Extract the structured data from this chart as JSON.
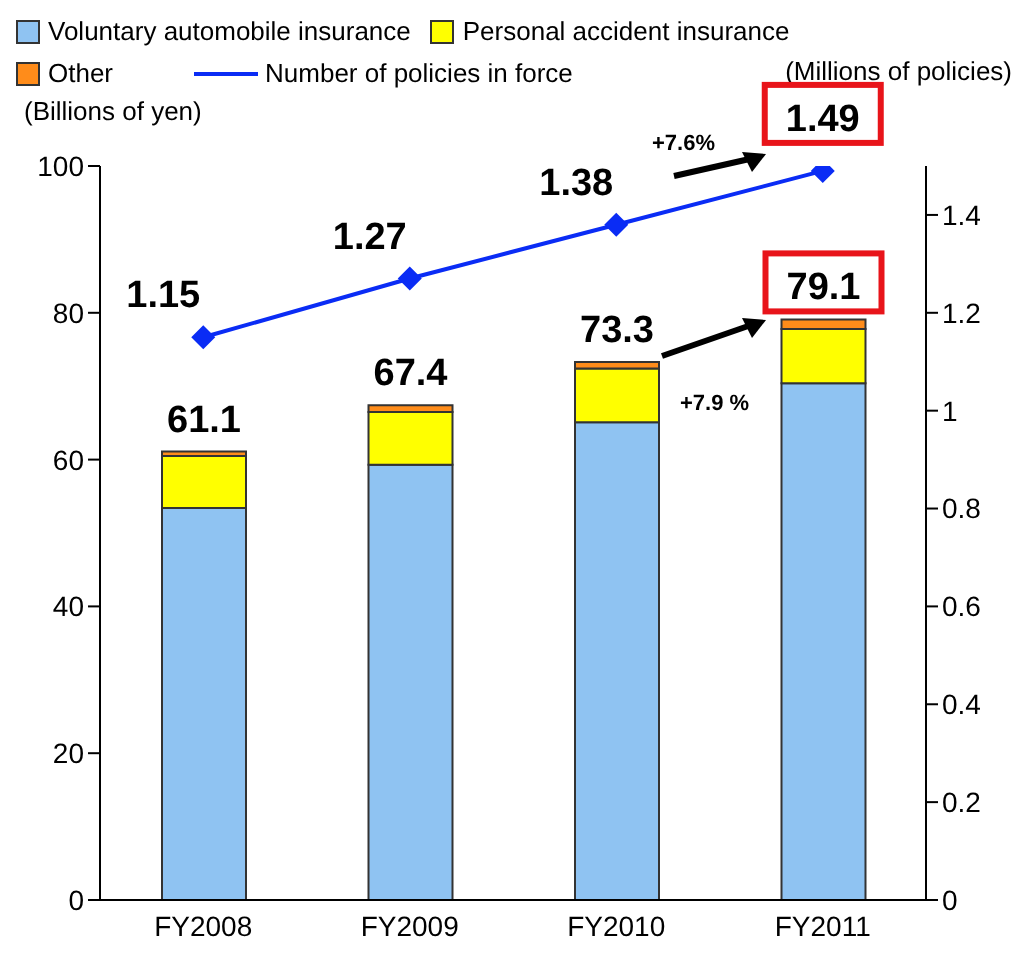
{
  "chart_data": {
    "type": "bar",
    "stacked": true,
    "categories": [
      "FY2008",
      "FY2009",
      "FY2010",
      "FY2011"
    ],
    "ylabel": "(Billions of yen)",
    "y2label": "(Millions of policies)",
    "ylim": [
      0,
      100
    ],
    "yticks": [
      0,
      20,
      40,
      60,
      80,
      100
    ],
    "y2lim": [
      0,
      1.5
    ],
    "y2ticks": [
      0,
      0.2,
      0.4,
      0.6,
      0.8,
      1,
      1.2,
      1.4
    ],
    "series": [
      {
        "name": "Voluntary automobile insurance",
        "color": "#8fc3f2",
        "values": [
          53.4,
          59.3,
          65.1,
          70.4
        ]
      },
      {
        "name": "Personal accident insurance",
        "color": "#ffff00",
        "values": [
          7.1,
          7.2,
          7.3,
          7.4
        ]
      },
      {
        "name": "Other",
        "color": "#ff8c1a",
        "values": [
          0.6,
          0.9,
          0.9,
          1.3
        ]
      },
      {
        "name": "Number of policies in force",
        "type": "line",
        "axis": "y2",
        "color": "#0a2cf5",
        "values": [
          1.15,
          1.27,
          1.38,
          1.49
        ],
        "value_labels": [
          "1.15",
          "1.27",
          "1.38",
          "1.49"
        ],
        "marker": "diamond"
      }
    ],
    "totals": [
      "61.1",
      "67.4",
      "73.3",
      "79.1"
    ],
    "annotations": [
      "+7.6%",
      "+7.9 %"
    ],
    "legend": "top"
  }
}
